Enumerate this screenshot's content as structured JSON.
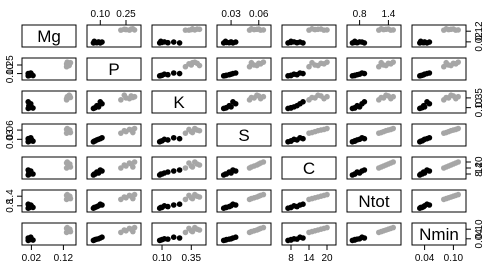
{
  "chart_data": {
    "type": "scatter-matrix",
    "colors": [
      "#000000",
      "#a6a6a6"
    ],
    "group": [
      0,
      0,
      0,
      0,
      0,
      0,
      0,
      1,
      1,
      1,
      1,
      1,
      1,
      1
    ],
    "variables": [
      {
        "name": "Mg",
        "lim": [
          0.0,
          0.15
        ],
        "ticks": [
          0.02,
          0.12
        ],
        "values": [
          0.01,
          0.015,
          0.02,
          0.012,
          0.018,
          0.025,
          0.01,
          0.13,
          0.135,
          0.14,
          0.132,
          0.138,
          0.13,
          0.142
        ]
      },
      {
        "name": "P",
        "lim": [
          0.04,
          0.32
        ],
        "ticks": [
          {
            "value": 0.1,
            "label": "0.10"
          },
          0.25
        ],
        "values": [
          0.06,
          0.07,
          0.09,
          0.08,
          0.11,
          0.065,
          0.1,
          0.22,
          0.25,
          0.28,
          0.3,
          0.24,
          0.27,
          0.29
        ]
      },
      {
        "name": "K",
        "lim": [
          0.04,
          0.45
        ],
        "ticks": [
          {
            "value": 0.1,
            "label": "0.10"
          },
          0.35
        ],
        "values": [
          0.08,
          0.1,
          0.12,
          0.15,
          0.2,
          0.09,
          0.25,
          0.3,
          0.35,
          0.4,
          0.38,
          0.42,
          0.33,
          0.36
        ]
      },
      {
        "name": "S",
        "lim": [
          0.018,
          0.07
        ],
        "ticks": [
          0.03,
          0.06
        ],
        "values": [
          0.022,
          0.025,
          0.03,
          0.028,
          0.035,
          0.024,
          0.032,
          0.05,
          0.055,
          0.06,
          0.065,
          0.058,
          0.062,
          0.052
        ]
      },
      {
        "name": "C",
        "lim": [
          6,
          22
        ],
        "ticks": [
          8,
          14,
          20
        ],
        "values": [
          7,
          8,
          9,
          10,
          11,
          8,
          12,
          14,
          16,
          18,
          20,
          17,
          19,
          15
        ]
      },
      {
        "name": "Ntot",
        "lim": [
          0.6,
          1.6
        ],
        "ticks": [
          0.8,
          1.4
        ],
        "values": [
          0.65,
          0.7,
          0.8,
          0.75,
          0.85,
          0.7,
          0.9,
          1.2,
          1.3,
          1.4,
          1.5,
          1.35,
          1.45,
          1.25
        ]
      },
      {
        "name": "Nmin",
        "lim": [
          0.02,
          0.12
        ],
        "ticks": [
          0.04,
          {
            "value": 0.1,
            "label": "0.10"
          }
        ],
        "values": [
          0.03,
          0.035,
          0.04,
          0.038,
          0.05,
          0.032,
          0.045,
          0.08,
          0.09,
          0.1,
          0.11,
          0.095,
          0.105,
          0.085
        ]
      }
    ]
  }
}
